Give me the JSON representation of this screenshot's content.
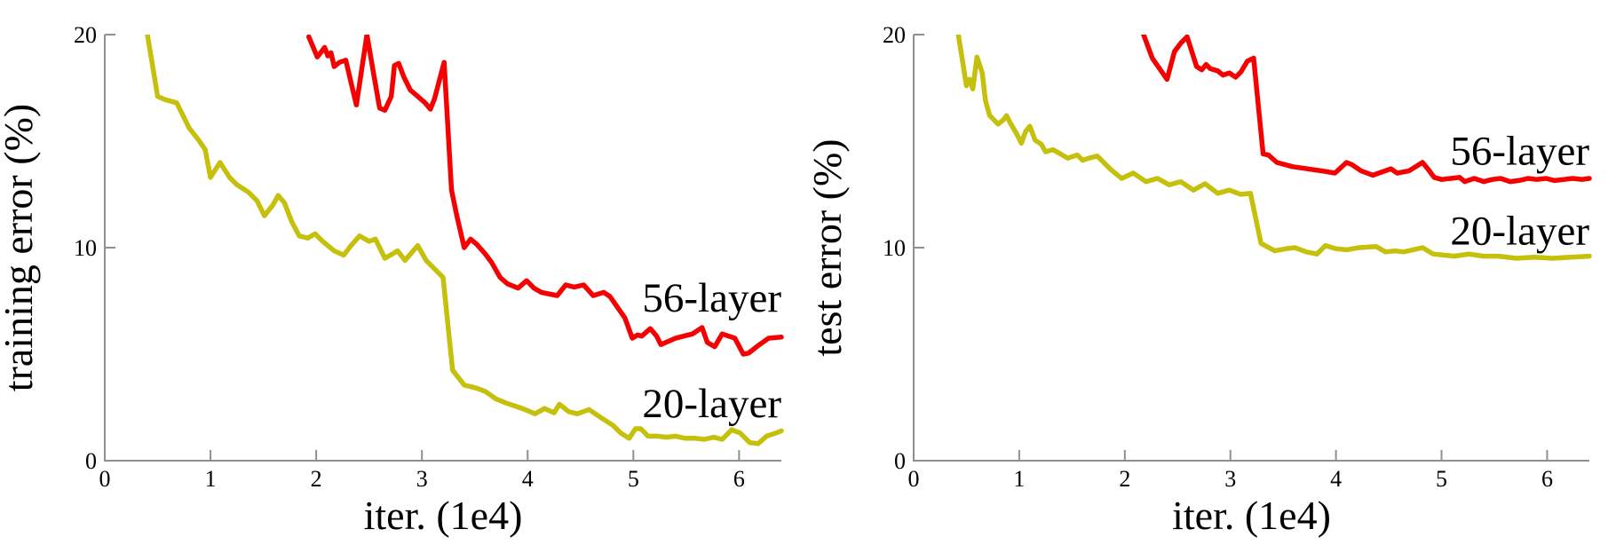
{
  "figure": {
    "background": "#ffffff",
    "axis_color": "#8f8f8f",
    "text_color": "#000000"
  },
  "chart_data": [
    {
      "type": "line",
      "title": "",
      "xlabel": "iter. (1e4)",
      "ylabel": "training error (%)",
      "xlim": [
        0,
        6.4
      ],
      "ylim": [
        0,
        20
      ],
      "xticks": [
        0,
        1,
        2,
        3,
        4,
        5,
        6
      ],
      "yticks": [
        0,
        10,
        20
      ],
      "grid": false,
      "legend_position": "inline-annotations",
      "series": [
        {
          "name": "56-layer",
          "color": "#f40202",
          "points": [
            [
              1.93,
              19.9
            ],
            [
              2.01,
              18.95
            ],
            [
              2.05,
              19.2
            ],
            [
              2.08,
              19.4
            ],
            [
              2.11,
              19.0
            ],
            [
              2.14,
              19.15
            ],
            [
              2.17,
              18.5
            ],
            [
              2.22,
              18.7
            ],
            [
              2.28,
              18.8
            ],
            [
              2.32,
              17.95
            ],
            [
              2.38,
              16.7
            ],
            [
              2.48,
              20.0
            ],
            [
              2.54,
              18.25
            ],
            [
              2.6,
              16.55
            ],
            [
              2.65,
              16.45
            ],
            [
              2.71,
              17.1
            ],
            [
              2.74,
              18.55
            ],
            [
              2.78,
              18.65
            ],
            [
              2.83,
              18.0
            ],
            [
              2.89,
              17.4
            ],
            [
              2.96,
              17.1
            ],
            [
              3.03,
              16.8
            ],
            [
              3.08,
              16.5
            ],
            [
              3.12,
              17.0
            ],
            [
              3.21,
              18.7
            ],
            [
              3.28,
              12.7
            ],
            [
              3.33,
              11.5
            ],
            [
              3.4,
              10.0
            ],
            [
              3.46,
              10.4
            ],
            [
              3.52,
              10.15
            ],
            [
              3.6,
              9.7
            ],
            [
              3.66,
              9.3
            ],
            [
              3.74,
              8.6
            ],
            [
              3.81,
              8.3
            ],
            [
              3.91,
              8.1
            ],
            [
              3.99,
              8.45
            ],
            [
              4.06,
              8.1
            ],
            [
              4.13,
              7.9
            ],
            [
              4.28,
              7.75
            ],
            [
              4.36,
              8.25
            ],
            [
              4.44,
              8.15
            ],
            [
              4.53,
              8.25
            ],
            [
              4.62,
              7.75
            ],
            [
              4.72,
              7.9
            ],
            [
              4.78,
              7.7
            ],
            [
              4.92,
              6.7
            ],
            [
              4.99,
              5.75
            ],
            [
              5.04,
              5.9
            ],
            [
              5.08,
              5.85
            ],
            [
              5.16,
              6.2
            ],
            [
              5.22,
              5.85
            ],
            [
              5.26,
              5.45
            ],
            [
              5.33,
              5.6
            ],
            [
              5.4,
              5.75
            ],
            [
              5.48,
              5.85
            ],
            [
              5.56,
              5.95
            ],
            [
              5.65,
              6.25
            ],
            [
              5.7,
              5.55
            ],
            [
              5.77,
              5.35
            ],
            [
              5.84,
              5.95
            ],
            [
              5.96,
              5.75
            ],
            [
              6.04,
              5.0
            ],
            [
              6.09,
              5.05
            ],
            [
              6.18,
              5.4
            ],
            [
              6.28,
              5.75
            ],
            [
              6.4,
              5.8
            ]
          ]
        },
        {
          "name": "20-layer",
          "color": "#c4c00c",
          "points": [
            [
              0.4,
              20.1
            ],
            [
              0.5,
              17.1
            ],
            [
              0.57,
              16.95
            ],
            [
              0.68,
              16.8
            ],
            [
              0.8,
              15.6
            ],
            [
              0.88,
              15.1
            ],
            [
              0.95,
              14.6
            ],
            [
              1.0,
              13.3
            ],
            [
              1.09,
              14.0
            ],
            [
              1.18,
              13.3
            ],
            [
              1.25,
              12.95
            ],
            [
              1.36,
              12.6
            ],
            [
              1.44,
              12.2
            ],
            [
              1.51,
              11.5
            ],
            [
              1.59,
              12.0
            ],
            [
              1.64,
              12.45
            ],
            [
              1.7,
              12.1
            ],
            [
              1.77,
              11.2
            ],
            [
              1.84,
              10.55
            ],
            [
              1.92,
              10.45
            ],
            [
              1.99,
              10.65
            ],
            [
              2.06,
              10.3
            ],
            [
              2.17,
              9.85
            ],
            [
              2.26,
              9.65
            ],
            [
              2.33,
              10.1
            ],
            [
              2.41,
              10.55
            ],
            [
              2.5,
              10.3
            ],
            [
              2.56,
              10.4
            ],
            [
              2.65,
              9.5
            ],
            [
              2.77,
              9.85
            ],
            [
              2.84,
              9.4
            ],
            [
              2.96,
              10.1
            ],
            [
              3.04,
              9.4
            ],
            [
              3.13,
              8.95
            ],
            [
              3.2,
              8.6
            ],
            [
              3.29,
              4.25
            ],
            [
              3.4,
              3.55
            ],
            [
              3.52,
              3.4
            ],
            [
              3.6,
              3.25
            ],
            [
              3.7,
              2.9
            ],
            [
              3.8,
              2.7
            ],
            [
              3.92,
              2.5
            ],
            [
              4.0,
              2.35
            ],
            [
              4.07,
              2.2
            ],
            [
              4.16,
              2.45
            ],
            [
              4.25,
              2.25
            ],
            [
              4.3,
              2.65
            ],
            [
              4.39,
              2.3
            ],
            [
              4.47,
              2.2
            ],
            [
              4.58,
              2.4
            ],
            [
              4.7,
              2.0
            ],
            [
              4.81,
              1.65
            ],
            [
              4.88,
              1.3
            ],
            [
              4.96,
              1.05
            ],
            [
              5.02,
              1.5
            ],
            [
              5.07,
              1.5
            ],
            [
              5.14,
              1.15
            ],
            [
              5.23,
              1.15
            ],
            [
              5.31,
              1.1
            ],
            [
              5.4,
              1.15
            ],
            [
              5.49,
              1.05
            ],
            [
              5.59,
              1.05
            ],
            [
              5.67,
              1.0
            ],
            [
              5.76,
              1.1
            ],
            [
              5.84,
              1.0
            ],
            [
              5.93,
              1.45
            ],
            [
              6.01,
              1.3
            ],
            [
              6.1,
              0.85
            ],
            [
              6.18,
              0.8
            ],
            [
              6.26,
              1.15
            ],
            [
              6.35,
              1.3
            ],
            [
              6.4,
              1.4
            ]
          ]
        }
      ],
      "annotations": [
        {
          "text": "56-layer",
          "x": 6.4,
          "y": 7.0,
          "anchor": "end"
        },
        {
          "text": "20-layer",
          "x": 6.4,
          "y": 2.05,
          "anchor": "end"
        }
      ]
    },
    {
      "type": "line",
      "title": "",
      "xlabel": "iter. (1e4)",
      "ylabel": "test error (%)",
      "xlim": [
        0,
        6.4
      ],
      "ylim": [
        0,
        20
      ],
      "xticks": [
        0,
        1,
        2,
        3,
        4,
        5,
        6
      ],
      "yticks": [
        0,
        10,
        20
      ],
      "grid": false,
      "legend_position": "inline-annotations",
      "series": [
        {
          "name": "56-layer",
          "color": "#f40202",
          "points": [
            [
              2.17,
              20.1
            ],
            [
              2.26,
              18.9
            ],
            [
              2.33,
              18.4
            ],
            [
              2.4,
              17.9
            ],
            [
              2.47,
              19.2
            ],
            [
              2.53,
              19.6
            ],
            [
              2.59,
              19.9
            ],
            [
              2.68,
              18.5
            ],
            [
              2.73,
              18.35
            ],
            [
              2.77,
              18.6
            ],
            [
              2.81,
              18.4
            ],
            [
              2.88,
              18.3
            ],
            [
              2.93,
              18.1
            ],
            [
              2.99,
              18.2
            ],
            [
              3.05,
              18.0
            ],
            [
              3.1,
              18.25
            ],
            [
              3.16,
              18.75
            ],
            [
              3.22,
              18.9
            ],
            [
              3.31,
              14.4
            ],
            [
              3.36,
              14.35
            ],
            [
              3.44,
              14.0
            ],
            [
              3.59,
              13.8
            ],
            [
              3.73,
              13.7
            ],
            [
              3.87,
              13.6
            ],
            [
              3.99,
              13.5
            ],
            [
              4.1,
              14.0
            ],
            [
              4.15,
              13.9
            ],
            [
              4.24,
              13.6
            ],
            [
              4.35,
              13.4
            ],
            [
              4.52,
              13.7
            ],
            [
              4.58,
              13.5
            ],
            [
              4.69,
              13.6
            ],
            [
              4.82,
              14.0
            ],
            [
              4.87,
              13.7
            ],
            [
              4.93,
              13.3
            ],
            [
              5.0,
              13.2
            ],
            [
              5.09,
              13.25
            ],
            [
              5.17,
              13.3
            ],
            [
              5.22,
              13.1
            ],
            [
              5.31,
              13.25
            ],
            [
              5.4,
              13.1
            ],
            [
              5.48,
              13.2
            ],
            [
              5.56,
              13.25
            ],
            [
              5.65,
              13.1
            ],
            [
              5.73,
              13.15
            ],
            [
              5.82,
              13.25
            ],
            [
              5.9,
              13.2
            ],
            [
              5.99,
              13.25
            ],
            [
              6.07,
              13.15
            ],
            [
              6.16,
              13.2
            ],
            [
              6.24,
              13.25
            ],
            [
              6.33,
              13.2
            ],
            [
              6.4,
              13.25
            ]
          ]
        },
        {
          "name": "20-layer",
          "color": "#c4c00c",
          "points": [
            [
              0.42,
              20.1
            ],
            [
              0.5,
              17.6
            ],
            [
              0.53,
              17.9
            ],
            [
              0.56,
              17.45
            ],
            [
              0.6,
              18.95
            ],
            [
              0.65,
              18.2
            ],
            [
              0.68,
              16.9
            ],
            [
              0.72,
              16.2
            ],
            [
              0.76,
              16.0
            ],
            [
              0.8,
              15.8
            ],
            [
              0.85,
              16.0
            ],
            [
              0.88,
              16.2
            ],
            [
              0.91,
              15.9
            ],
            [
              0.98,
              15.3
            ],
            [
              1.02,
              14.9
            ],
            [
              1.06,
              15.45
            ],
            [
              1.1,
              15.7
            ],
            [
              1.15,
              15.05
            ],
            [
              1.21,
              14.85
            ],
            [
              1.25,
              14.5
            ],
            [
              1.32,
              14.6
            ],
            [
              1.39,
              14.4
            ],
            [
              1.46,
              14.2
            ],
            [
              1.55,
              14.35
            ],
            [
              1.6,
              14.1
            ],
            [
              1.66,
              14.2
            ],
            [
              1.74,
              14.3
            ],
            [
              1.86,
              13.7
            ],
            [
              1.97,
              13.25
            ],
            [
              2.08,
              13.5
            ],
            [
              2.2,
              13.1
            ],
            [
              2.31,
              13.25
            ],
            [
              2.42,
              12.95
            ],
            [
              2.53,
              13.1
            ],
            [
              2.65,
              12.7
            ],
            [
              2.76,
              13.0
            ],
            [
              2.88,
              12.55
            ],
            [
              2.99,
              12.7
            ],
            [
              3.1,
              12.5
            ],
            [
              3.19,
              12.55
            ],
            [
              3.29,
              10.2
            ],
            [
              3.42,
              9.85
            ],
            [
              3.53,
              9.95
            ],
            [
              3.61,
              10.0
            ],
            [
              3.72,
              9.8
            ],
            [
              3.82,
              9.7
            ],
            [
              3.9,
              10.1
            ],
            [
              4.0,
              9.95
            ],
            [
              4.1,
              9.9
            ],
            [
              4.22,
              10.0
            ],
            [
              4.38,
              10.05
            ],
            [
              4.47,
              9.8
            ],
            [
              4.56,
              9.85
            ],
            [
              4.64,
              9.8
            ],
            [
              4.73,
              9.9
            ],
            [
              4.82,
              10.0
            ],
            [
              4.92,
              9.7
            ],
            [
              5.02,
              9.65
            ],
            [
              5.12,
              9.6
            ],
            [
              5.26,
              9.7
            ],
            [
              5.4,
              9.6
            ],
            [
              5.54,
              9.6
            ],
            [
              5.71,
              9.5
            ],
            [
              5.88,
              9.55
            ],
            [
              6.05,
              9.5
            ],
            [
              6.22,
              9.55
            ],
            [
              6.4,
              9.6
            ]
          ]
        }
      ],
      "annotations": [
        {
          "text": "56-layer",
          "x": 6.4,
          "y": 13.9,
          "anchor": "end"
        },
        {
          "text": "20-layer",
          "x": 6.4,
          "y": 10.15,
          "anchor": "end"
        }
      ]
    }
  ]
}
